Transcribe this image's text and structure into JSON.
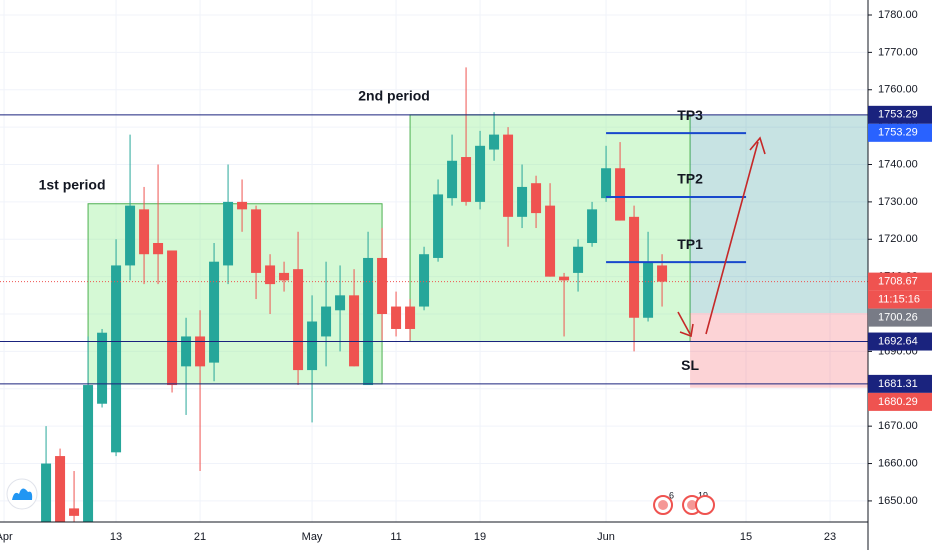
{
  "chart_data": {
    "type": "candlestick",
    "x": [
      0,
      1,
      2,
      3,
      4,
      5,
      6,
      7,
      8,
      9,
      10,
      11,
      12,
      13,
      14,
      15,
      16,
      17,
      18,
      19,
      20,
      21,
      22,
      23,
      24,
      25,
      26,
      27,
      28,
      29,
      30,
      31,
      32,
      33,
      34,
      35,
      36,
      37,
      38,
      39,
      40,
      41,
      42,
      43,
      44
    ],
    "open": [
      1640,
      1662,
      1648,
      1640,
      1676,
      1663,
      1713,
      1728,
      1719,
      1717,
      1686,
      1694,
      1687,
      1713,
      1730,
      1728,
      1713,
      1711,
      1712,
      1685,
      1694,
      1701,
      1705,
      1681,
      1715,
      1702,
      1702,
      1702,
      1715,
      1731,
      1742,
      1730,
      1744,
      1748,
      1726,
      1735,
      1729,
      1710,
      1711,
      1719,
      1731,
      1739,
      1726,
      1699,
      1713
    ],
    "high": [
      1670,
      1664,
      1658,
      1694,
      1696,
      1720,
      1748,
      1734,
      1740,
      1717,
      1699,
      1701,
      1719,
      1740,
      1736,
      1729,
      1716,
      1714,
      1722,
      1705,
      1714,
      1713,
      1712,
      1722,
      1723,
      1706,
      1704,
      1718,
      1736,
      1748,
      1766,
      1749,
      1754,
      1750,
      1740,
      1737,
      1735,
      1711,
      1720,
      1730,
      1745,
      1746,
      1729,
      1722,
      1716
    ],
    "low": [
      1635,
      1635,
      1635,
      1635,
      1675,
      1662,
      1709,
      1708,
      1708,
      1679,
      1673,
      1658,
      1682,
      1708,
      1722,
      1704,
      1700,
      1706,
      1681,
      1671,
      1686,
      1690,
      1686,
      1681,
      1693,
      1694,
      1693,
      1701,
      1714,
      1729,
      1729,
      1728,
      1741,
      1718,
      1723,
      1723,
      1710,
      1694,
      1706,
      1718,
      1730,
      1725,
      1690,
      1698,
      1702
    ],
    "close": [
      1660,
      1640,
      1646,
      1681,
      1695,
      1713,
      1729,
      1716,
      1716,
      1681,
      1694,
      1686,
      1714,
      1730,
      1728,
      1711,
      1708,
      1709,
      1685,
      1698,
      1702,
      1705,
      1686,
      1715,
      1700,
      1696,
      1696,
      1716,
      1732,
      1741,
      1730,
      1745,
      1748,
      1726,
      1734,
      1727,
      1710,
      1709,
      1718,
      1728,
      1739,
      1725,
      1699,
      1714,
      1708.67
    ],
    "up_color": "#26a69a",
    "down_color": "#ef5350",
    "xlim": [
      -3.29,
      58.71
    ],
    "xticks": [
      {
        "value": -3,
        "label": "Apr"
      },
      {
        "value": 5,
        "label": "13"
      },
      {
        "value": 11,
        "label": "21"
      },
      {
        "value": 19,
        "label": "May"
      },
      {
        "value": 25,
        "label": "11"
      },
      {
        "value": 31,
        "label": "19"
      },
      {
        "value": 40,
        "label": "Jun"
      },
      {
        "value": 50,
        "label": "15"
      },
      {
        "value": 56,
        "label": "23"
      }
    ],
    "ylim": [
      1644.36,
      1784.01
    ],
    "yticks": [
      {
        "value": 1650,
        "label": "1650.00"
      },
      {
        "value": 1660,
        "label": "1660.00"
      },
      {
        "value": 1670,
        "label": "1670.00"
      },
      {
        "value": 1680,
        "label": "1680.00"
      },
      {
        "value": 1690,
        "label": "1690.00"
      },
      {
        "value": 1700,
        "label": "1700.00"
      },
      {
        "value": 1710,
        "label": "1710.00"
      },
      {
        "value": 1720,
        "label": "1720.00"
      },
      {
        "value": 1730,
        "label": "1730.00"
      },
      {
        "value": 1740,
        "label": "1740.00"
      },
      {
        "value": 1750,
        "label": "1750.00"
      },
      {
        "value": 1760,
        "label": "1760.00"
      },
      {
        "value": 1770,
        "label": "1770.00"
      },
      {
        "value": 1780,
        "label": "1780.00"
      }
    ],
    "grid": true,
    "hlines": [
      1753.29,
      1692.64,
      1681.31
    ],
    "hline_color": "#1a237e",
    "last_price": 1708.67,
    "countdown": "11:15:16",
    "zones": [
      {
        "label": "1st period",
        "x": [
          3,
          24
        ],
        "y": [
          1681.31,
          1729.5
        ]
      },
      {
        "label": "2nd period",
        "x": [
          26,
          46
        ],
        "y": [
          1692.64,
          1753.29
        ]
      }
    ],
    "levels": [
      {
        "label": "TP3",
        "value": 1748.4
      },
      {
        "label": "TP2",
        "value": 1731.3
      },
      {
        "label": "TP1",
        "value": 1713.9
      }
    ],
    "level_x": [
      40,
      50
    ],
    "position": {
      "start": 46,
      "entry": 1700.26,
      "target": 1753.29,
      "stop": 1680.29,
      "stop_label": "SL"
    },
    "events": [
      {
        "x": 44.07,
        "label": "6"
      },
      {
        "x": 46.14,
        "label": "19"
      }
    ]
  }
}
